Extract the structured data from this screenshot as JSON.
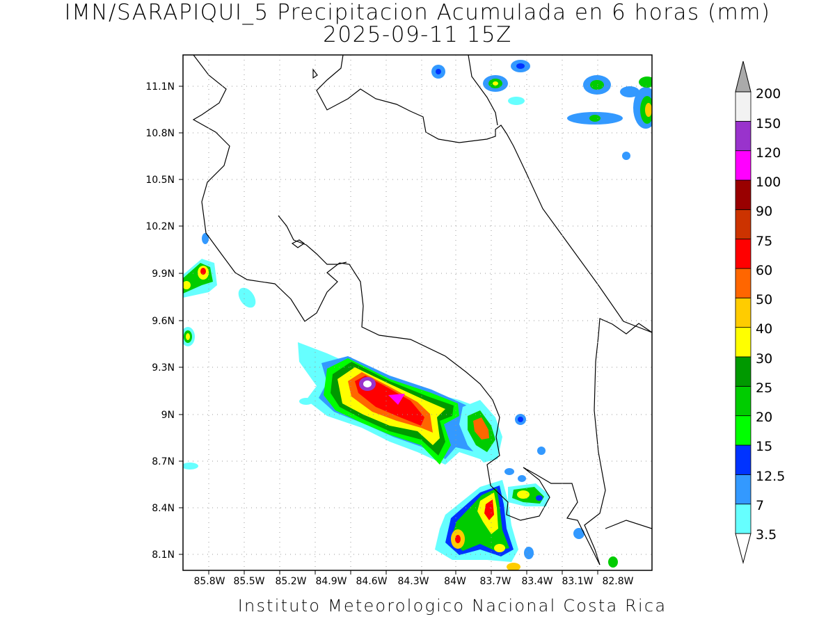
{
  "title": {
    "line1": "IMN/SARAPIQUI_5 Precipitacion Acumulada en 6 horas (mm)",
    "line2": "2025-09-11 15Z"
  },
  "footer": "Instituto Meteorologico Nacional Costa Rica",
  "axes": {
    "lat_ticks": [
      "11.1N",
      "10.8N",
      "10.5N",
      "10.2N",
      "9.9N",
      "9.6N",
      "9.3N",
      "9N",
      "8.7N",
      "8.4N",
      "8.1N"
    ],
    "lon_ticks": [
      "85.8W",
      "85.5W",
      "85.2W",
      "84.9W",
      "84.6W",
      "84.3W",
      "84W",
      "83.7W",
      "83.4W",
      "83.1W",
      "82.8W"
    ],
    "grid": true
  },
  "colorbar": {
    "labels": [
      "3.5",
      "7",
      "12.5",
      "15",
      "20",
      "25",
      "30",
      "40",
      "50",
      "60",
      "75",
      "90",
      "100",
      "120",
      "150",
      "200"
    ],
    "colors": [
      "#66ffff",
      "#3399ff",
      "#0033ff",
      "#00ff00",
      "#00cc00",
      "#009900",
      "#ffff00",
      "#ffcc00",
      "#ff6600",
      "#ff0000",
      "#cc3300",
      "#990000",
      "#ff00ff",
      "#9933cc",
      "#f2f2f2",
      "#aaaaaa"
    ]
  }
}
